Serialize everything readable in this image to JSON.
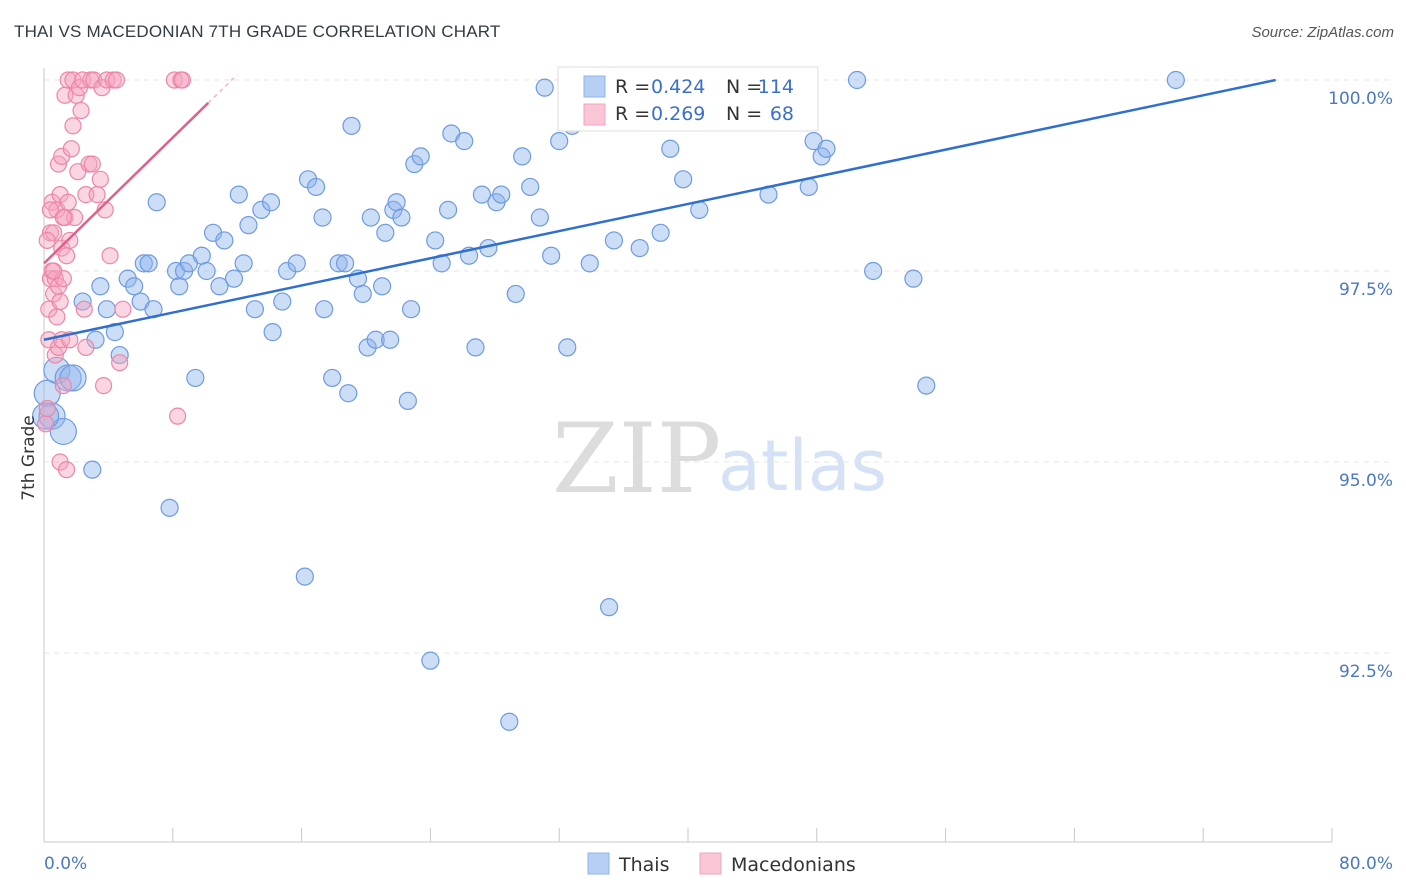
{
  "title": "THAI VS MACEDONIAN 7TH GRADE CORRELATION CHART",
  "source": "Source: ZipAtlas.com",
  "watermark": {
    "zip": "ZIP",
    "atlas": "atlas"
  },
  "colors": {
    "thai": "#8fb4ea",
    "thai_line": "#2f6fcf",
    "mac": "#f4a3bf",
    "mac_line": "#e0608a"
  },
  "chart_data": {
    "type": "scatter",
    "xlabel": "",
    "ylabel": "7th Grade",
    "xlim": [
      0,
      80
    ],
    "ylim": [
      90.0,
      100.4
    ],
    "x_tick_labels": {
      "left": "0.0%",
      "right": "80.0%"
    },
    "y_ticks": [
      {
        "value": 100.0,
        "label": "100.0%"
      },
      {
        "value": 97.5,
        "label": "97.5%"
      },
      {
        "value": 95.0,
        "label": "95.0%"
      },
      {
        "value": 92.5,
        "label": "92.5%"
      }
    ],
    "legend": {
      "rows": [
        {
          "r_label": "R =",
          "r_value": "0.424",
          "n_label": "N =",
          "n_value": "114"
        },
        {
          "r_label": "R =",
          "r_value": "0.269",
          "n_label": "N =",
          "n_value": "68"
        }
      ],
      "bottom": [
        "Thais",
        "Macedonians"
      ]
    },
    "series": [
      {
        "name": "Thais",
        "trend": {
          "x": [
            0,
            76.5
          ],
          "y": [
            96.6,
            100.0
          ]
        },
        "points": [
          [
            0.2,
            95.9
          ],
          [
            0.5,
            95.6
          ],
          [
            0.8,
            96.2
          ],
          [
            1.2,
            95.4
          ],
          [
            1.5,
            96.1
          ],
          [
            1.8,
            96.1
          ],
          [
            2.4,
            97.1
          ],
          [
            3.0,
            94.9
          ],
          [
            3.2,
            96.6
          ],
          [
            3.5,
            97.3
          ],
          [
            3.9,
            97.0
          ],
          [
            4.4,
            96.7
          ],
          [
            4.7,
            96.4
          ],
          [
            5.2,
            97.4
          ],
          [
            5.6,
            97.3
          ],
          [
            6.0,
            97.1
          ],
          [
            6.2,
            97.6
          ],
          [
            6.5,
            97.6
          ],
          [
            6.8,
            97.0
          ],
          [
            7.0,
            98.4
          ],
          [
            7.8,
            94.4
          ],
          [
            8.2,
            97.5
          ],
          [
            8.4,
            97.3
          ],
          [
            8.7,
            97.5
          ],
          [
            9.0,
            97.6
          ],
          [
            9.4,
            96.1
          ],
          [
            9.8,
            97.7
          ],
          [
            10.1,
            97.5
          ],
          [
            10.5,
            98.0
          ],
          [
            10.9,
            97.3
          ],
          [
            11.2,
            97.9
          ],
          [
            11.8,
            97.4
          ],
          [
            12.1,
            98.5
          ],
          [
            12.4,
            97.6
          ],
          [
            12.7,
            98.1
          ],
          [
            13.1,
            97.0
          ],
          [
            13.5,
            98.3
          ],
          [
            14.1,
            98.4
          ],
          [
            14.2,
            96.7
          ],
          [
            14.8,
            97.1
          ],
          [
            15.1,
            97.5
          ],
          [
            15.7,
            97.6
          ],
          [
            16.2,
            93.5
          ],
          [
            16.4,
            98.7
          ],
          [
            16.9,
            98.6
          ],
          [
            17.3,
            98.2
          ],
          [
            17.4,
            97.0
          ],
          [
            17.9,
            96.1
          ],
          [
            18.3,
            97.6
          ],
          [
            18.7,
            97.6
          ],
          [
            18.9,
            95.9
          ],
          [
            19.1,
            99.4
          ],
          [
            19.5,
            97.4
          ],
          [
            19.8,
            97.2
          ],
          [
            20.1,
            96.5
          ],
          [
            20.3,
            98.2
          ],
          [
            20.6,
            96.6
          ],
          [
            21.0,
            97.3
          ],
          [
            21.2,
            98.0
          ],
          [
            21.5,
            96.6
          ],
          [
            21.7,
            98.3
          ],
          [
            21.9,
            98.4
          ],
          [
            22.2,
            98.2
          ],
          [
            22.6,
            95.8
          ],
          [
            22.8,
            97.0
          ],
          [
            23.0,
            98.9
          ],
          [
            23.4,
            99.0
          ],
          [
            24.0,
            92.4
          ],
          [
            24.3,
            97.9
          ],
          [
            24.7,
            97.6
          ],
          [
            25.1,
            98.3
          ],
          [
            25.3,
            99.3
          ],
          [
            26.1,
            99.2
          ],
          [
            26.4,
            97.7
          ],
          [
            26.8,
            96.5
          ],
          [
            27.2,
            98.5
          ],
          [
            27.6,
            97.8
          ],
          [
            28.1,
            98.4
          ],
          [
            28.4,
            98.5
          ],
          [
            28.9,
            91.6
          ],
          [
            29.3,
            97.2
          ],
          [
            29.7,
            99.0
          ],
          [
            30.2,
            98.6
          ],
          [
            30.8,
            98.2
          ],
          [
            31.1,
            99.9
          ],
          [
            31.5,
            97.7
          ],
          [
            32.0,
            99.2
          ],
          [
            32.5,
            96.5
          ],
          [
            32.8,
            99.4
          ],
          [
            33.3,
            100.0
          ],
          [
            33.9,
            97.6
          ],
          [
            34.5,
            99.8
          ],
          [
            35.0,
            99.9
          ],
          [
            35.1,
            93.1
          ],
          [
            35.4,
            97.9
          ],
          [
            36.7,
            99.5
          ],
          [
            37.0,
            97.8
          ],
          [
            37.4,
            99.6
          ],
          [
            37.9,
            99.9
          ],
          [
            38.3,
            98.0
          ],
          [
            38.9,
            99.1
          ],
          [
            39.7,
            98.7
          ],
          [
            40.2,
            100.0
          ],
          [
            40.7,
            98.3
          ],
          [
            42.0,
            100.0
          ],
          [
            45.0,
            98.5
          ],
          [
            47.5,
            98.6
          ],
          [
            47.8,
            99.2
          ],
          [
            48.3,
            99.0
          ],
          [
            48.6,
            99.1
          ],
          [
            50.5,
            100.0
          ],
          [
            51.5,
            97.5
          ],
          [
            54.0,
            97.4
          ],
          [
            54.8,
            96.0
          ],
          [
            70.3,
            100.0
          ],
          [
            0.1,
            95.6
          ]
        ]
      },
      {
        "name": "Macedonians",
        "trend": {
          "x": [
            0,
            10.2
          ],
          "y": [
            97.6,
            99.7
          ]
        },
        "points": [
          [
            0.1,
            95.5
          ],
          [
            0.2,
            95.7
          ],
          [
            0.3,
            96.6
          ],
          [
            0.3,
            97.0
          ],
          [
            0.4,
            97.4
          ],
          [
            0.4,
            98.0
          ],
          [
            0.5,
            97.5
          ],
          [
            0.5,
            98.4
          ],
          [
            0.6,
            97.2
          ],
          [
            0.6,
            98.0
          ],
          [
            0.7,
            96.4
          ],
          [
            0.7,
            97.4
          ],
          [
            0.8,
            96.9
          ],
          [
            0.8,
            98.3
          ],
          [
            0.9,
            96.5
          ],
          [
            0.9,
            97.3
          ],
          [
            0.9,
            98.9
          ],
          [
            1.0,
            95.0
          ],
          [
            1.0,
            97.1
          ],
          [
            1.0,
            98.5
          ],
          [
            1.1,
            96.6
          ],
          [
            1.1,
            97.8
          ],
          [
            1.1,
            99.0
          ],
          [
            1.2,
            96.0
          ],
          [
            1.2,
            97.4
          ],
          [
            1.3,
            98.2
          ],
          [
            1.3,
            99.8
          ],
          [
            1.4,
            94.9
          ],
          [
            1.4,
            97.7
          ],
          [
            1.5,
            98.4
          ],
          [
            1.5,
            100.0
          ],
          [
            1.6,
            96.6
          ],
          [
            1.6,
            97.9
          ],
          [
            1.7,
            99.1
          ],
          [
            1.8,
            99.4
          ],
          [
            1.8,
            100.0
          ],
          [
            1.9,
            98.2
          ],
          [
            2.0,
            99.8
          ],
          [
            2.1,
            98.8
          ],
          [
            2.2,
            99.9
          ],
          [
            2.3,
            99.6
          ],
          [
            2.4,
            100.0
          ],
          [
            2.5,
            97.0
          ],
          [
            2.6,
            96.5
          ],
          [
            2.6,
            98.5
          ],
          [
            2.8,
            98.9
          ],
          [
            2.9,
            100.0
          ],
          [
            3.0,
            98.9
          ],
          [
            3.1,
            100.0
          ],
          [
            3.3,
            98.5
          ],
          [
            3.5,
            98.7
          ],
          [
            3.6,
            99.9
          ],
          [
            3.7,
            96.0
          ],
          [
            3.8,
            98.3
          ],
          [
            3.9,
            100.0
          ],
          [
            4.1,
            97.7
          ],
          [
            4.3,
            100.0
          ],
          [
            4.5,
            100.0
          ],
          [
            4.7,
            96.3
          ],
          [
            4.9,
            97.0
          ],
          [
            8.1,
            100.0
          ],
          [
            8.3,
            95.6
          ],
          [
            8.5,
            100.0
          ],
          [
            8.6,
            100.0
          ],
          [
            0.2,
            97.9
          ],
          [
            0.4,
            98.3
          ],
          [
            1.2,
            98.2
          ],
          [
            0.6,
            97.5
          ]
        ]
      }
    ]
  }
}
